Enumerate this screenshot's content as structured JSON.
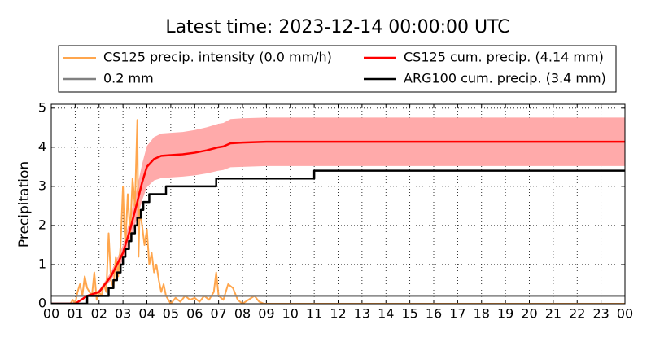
{
  "chart_data": {
    "type": "line",
    "title": "Latest time: 2023-12-14 00:00:00 UTC",
    "y_label": "Precipitation",
    "xlim": [
      0,
      24
    ],
    "ylim": [
      0,
      5.1
    ],
    "xticks": [
      {
        "value": 0,
        "label": "00"
      },
      {
        "value": 1,
        "label": "01"
      },
      {
        "value": 2,
        "label": "02"
      },
      {
        "value": 3,
        "label": "03"
      },
      {
        "value": 4,
        "label": "04"
      },
      {
        "value": 5,
        "label": "05"
      },
      {
        "value": 6,
        "label": "06"
      },
      {
        "value": 7,
        "label": "07"
      },
      {
        "value": 8,
        "label": "08"
      },
      {
        "value": 9,
        "label": "09"
      },
      {
        "value": 10,
        "label": "10"
      },
      {
        "value": 11,
        "label": "11"
      },
      {
        "value": 12,
        "label": "12"
      },
      {
        "value": 13,
        "label": "13"
      },
      {
        "value": 14,
        "label": "14"
      },
      {
        "value": 15,
        "label": "15"
      },
      {
        "value": 16,
        "label": "16"
      },
      {
        "value": 17,
        "label": "17"
      },
      {
        "value": 18,
        "label": "18"
      },
      {
        "value": 19,
        "label": "19"
      },
      {
        "value": 20,
        "label": "20"
      },
      {
        "value": 21,
        "label": "21"
      },
      {
        "value": 22,
        "label": "22"
      },
      {
        "value": 23,
        "label": "23"
      },
      {
        "value": 24,
        "label": "00"
      }
    ],
    "yticks": [
      0,
      1,
      2,
      3,
      4,
      5
    ],
    "grid": true,
    "band": {
      "color": "#ffaaaa",
      "x": [
        0,
        1.0,
        1.5,
        2.0,
        2.5,
        3.0,
        3.3,
        3.6,
        3.8,
        4.0,
        4.3,
        4.6,
        5.0,
        5.5,
        6.0,
        6.5,
        7.0,
        7.2,
        7.5,
        8.0,
        9,
        24
      ],
      "upper": [
        0,
        0,
        0.23,
        0.35,
        0.81,
        1.5,
        2.19,
        2.99,
        3.57,
        4.03,
        4.26,
        4.35,
        4.37,
        4.39,
        4.44,
        4.51,
        4.6,
        4.62,
        4.72,
        4.74,
        4.76,
        4.76
      ],
      "lower": [
        0,
        0,
        0.17,
        0.26,
        0.6,
        1.11,
        1.62,
        2.21,
        2.64,
        2.98,
        3.15,
        3.21,
        3.23,
        3.25,
        3.28,
        3.33,
        3.4,
        3.42,
        3.49,
        3.5,
        3.52,
        3.52
      ]
    },
    "series": [
      {
        "name": "CS125 precip. intensity (0.0 mm/h)",
        "color": "#ffa64d",
        "width": 2,
        "x": [
          0,
          0.8,
          0.9,
          1.0,
          1.1,
          1.2,
          1.3,
          1.4,
          1.5,
          1.6,
          1.7,
          1.8,
          1.9,
          2.0,
          2.1,
          2.2,
          2.3,
          2.4,
          2.5,
          2.6,
          2.7,
          2.8,
          2.9,
          3.0,
          3.05,
          3.1,
          3.2,
          3.3,
          3.4,
          3.5,
          3.6,
          3.65,
          3.7,
          3.8,
          3.9,
          4.0,
          4.1,
          4.2,
          4.3,
          4.4,
          4.5,
          4.6,
          4.7,
          4.8,
          4.9,
          5.0,
          5.2,
          5.4,
          5.6,
          5.8,
          6.0,
          6.2,
          6.4,
          6.6,
          6.8,
          6.9,
          7.0,
          7.2,
          7.4,
          7.6,
          7.8,
          8.0,
          8.5,
          8.7,
          8.9,
          9.0,
          24
        ],
        "values": [
          0,
          0,
          0.1,
          0,
          0.3,
          0.5,
          0.2,
          0.7,
          0.4,
          0.3,
          0.2,
          0.8,
          0.1,
          0.3,
          0.2,
          0.5,
          0.3,
          1.8,
          0.6,
          0.4,
          1.2,
          0.7,
          1.5,
          3.0,
          2.0,
          1.5,
          2.8,
          1.8,
          3.2,
          2.5,
          4.7,
          1.2,
          2.4,
          2.0,
          1.5,
          1.9,
          1.0,
          1.3,
          0.8,
          1.0,
          0.6,
          0.3,
          0.5,
          0.2,
          0.1,
          0.0,
          0.15,
          0.05,
          0.2,
          0.1,
          0.15,
          0.05,
          0.2,
          0.1,
          0.3,
          0.8,
          0.2,
          0.1,
          0.5,
          0.4,
          0.1,
          0,
          0.2,
          0.05,
          0,
          0,
          0
        ]
      },
      {
        "name": "0.2 mm",
        "color": "#808080",
        "width": 2.5,
        "x": [
          0,
          24
        ],
        "values": [
          0.2,
          0.2
        ]
      },
      {
        "name": "CS125 cum. precip. (4.14 mm)",
        "color": "#ff0000",
        "width": 2.5,
        "x": [
          0,
          1.0,
          1.5,
          2.0,
          2.5,
          3.0,
          3.3,
          3.6,
          3.8,
          4.0,
          4.3,
          4.6,
          5.0,
          5.5,
          6.0,
          6.5,
          7.0,
          7.2,
          7.5,
          8.0,
          9,
          24
        ],
        "values": [
          0,
          0,
          0.2,
          0.3,
          0.7,
          1.3,
          1.9,
          2.6,
          3.1,
          3.5,
          3.7,
          3.78,
          3.8,
          3.82,
          3.86,
          3.92,
          4.0,
          4.02,
          4.1,
          4.12,
          4.14,
          4.14
        ]
      },
      {
        "name": "ARG100 cum. precip. (3.4 mm)",
        "color": "#000000",
        "width": 2.5,
        "x": [
          0,
          1.5,
          1.5,
          2.4,
          2.4,
          2.6,
          2.6,
          2.75,
          2.75,
          2.9,
          2.9,
          3.0,
          3.0,
          3.1,
          3.1,
          3.25,
          3.25,
          3.35,
          3.35,
          3.5,
          3.5,
          3.6,
          3.6,
          3.75,
          3.75,
          3.85,
          3.85,
          4.1,
          4.1,
          4.8,
          4.8,
          6.9,
          6.9,
          11,
          11,
          24
        ],
        "values": [
          0,
          0,
          0.2,
          0.2,
          0.4,
          0.4,
          0.6,
          0.6,
          0.8,
          0.8,
          1.0,
          1.0,
          1.2,
          1.2,
          1.4,
          1.4,
          1.6,
          1.6,
          1.8,
          1.8,
          2.0,
          2.0,
          2.2,
          2.2,
          2.4,
          2.4,
          2.6,
          2.6,
          2.8,
          2.8,
          3.0,
          3.0,
          3.2,
          3.2,
          3.4,
          3.4
        ]
      }
    ]
  }
}
